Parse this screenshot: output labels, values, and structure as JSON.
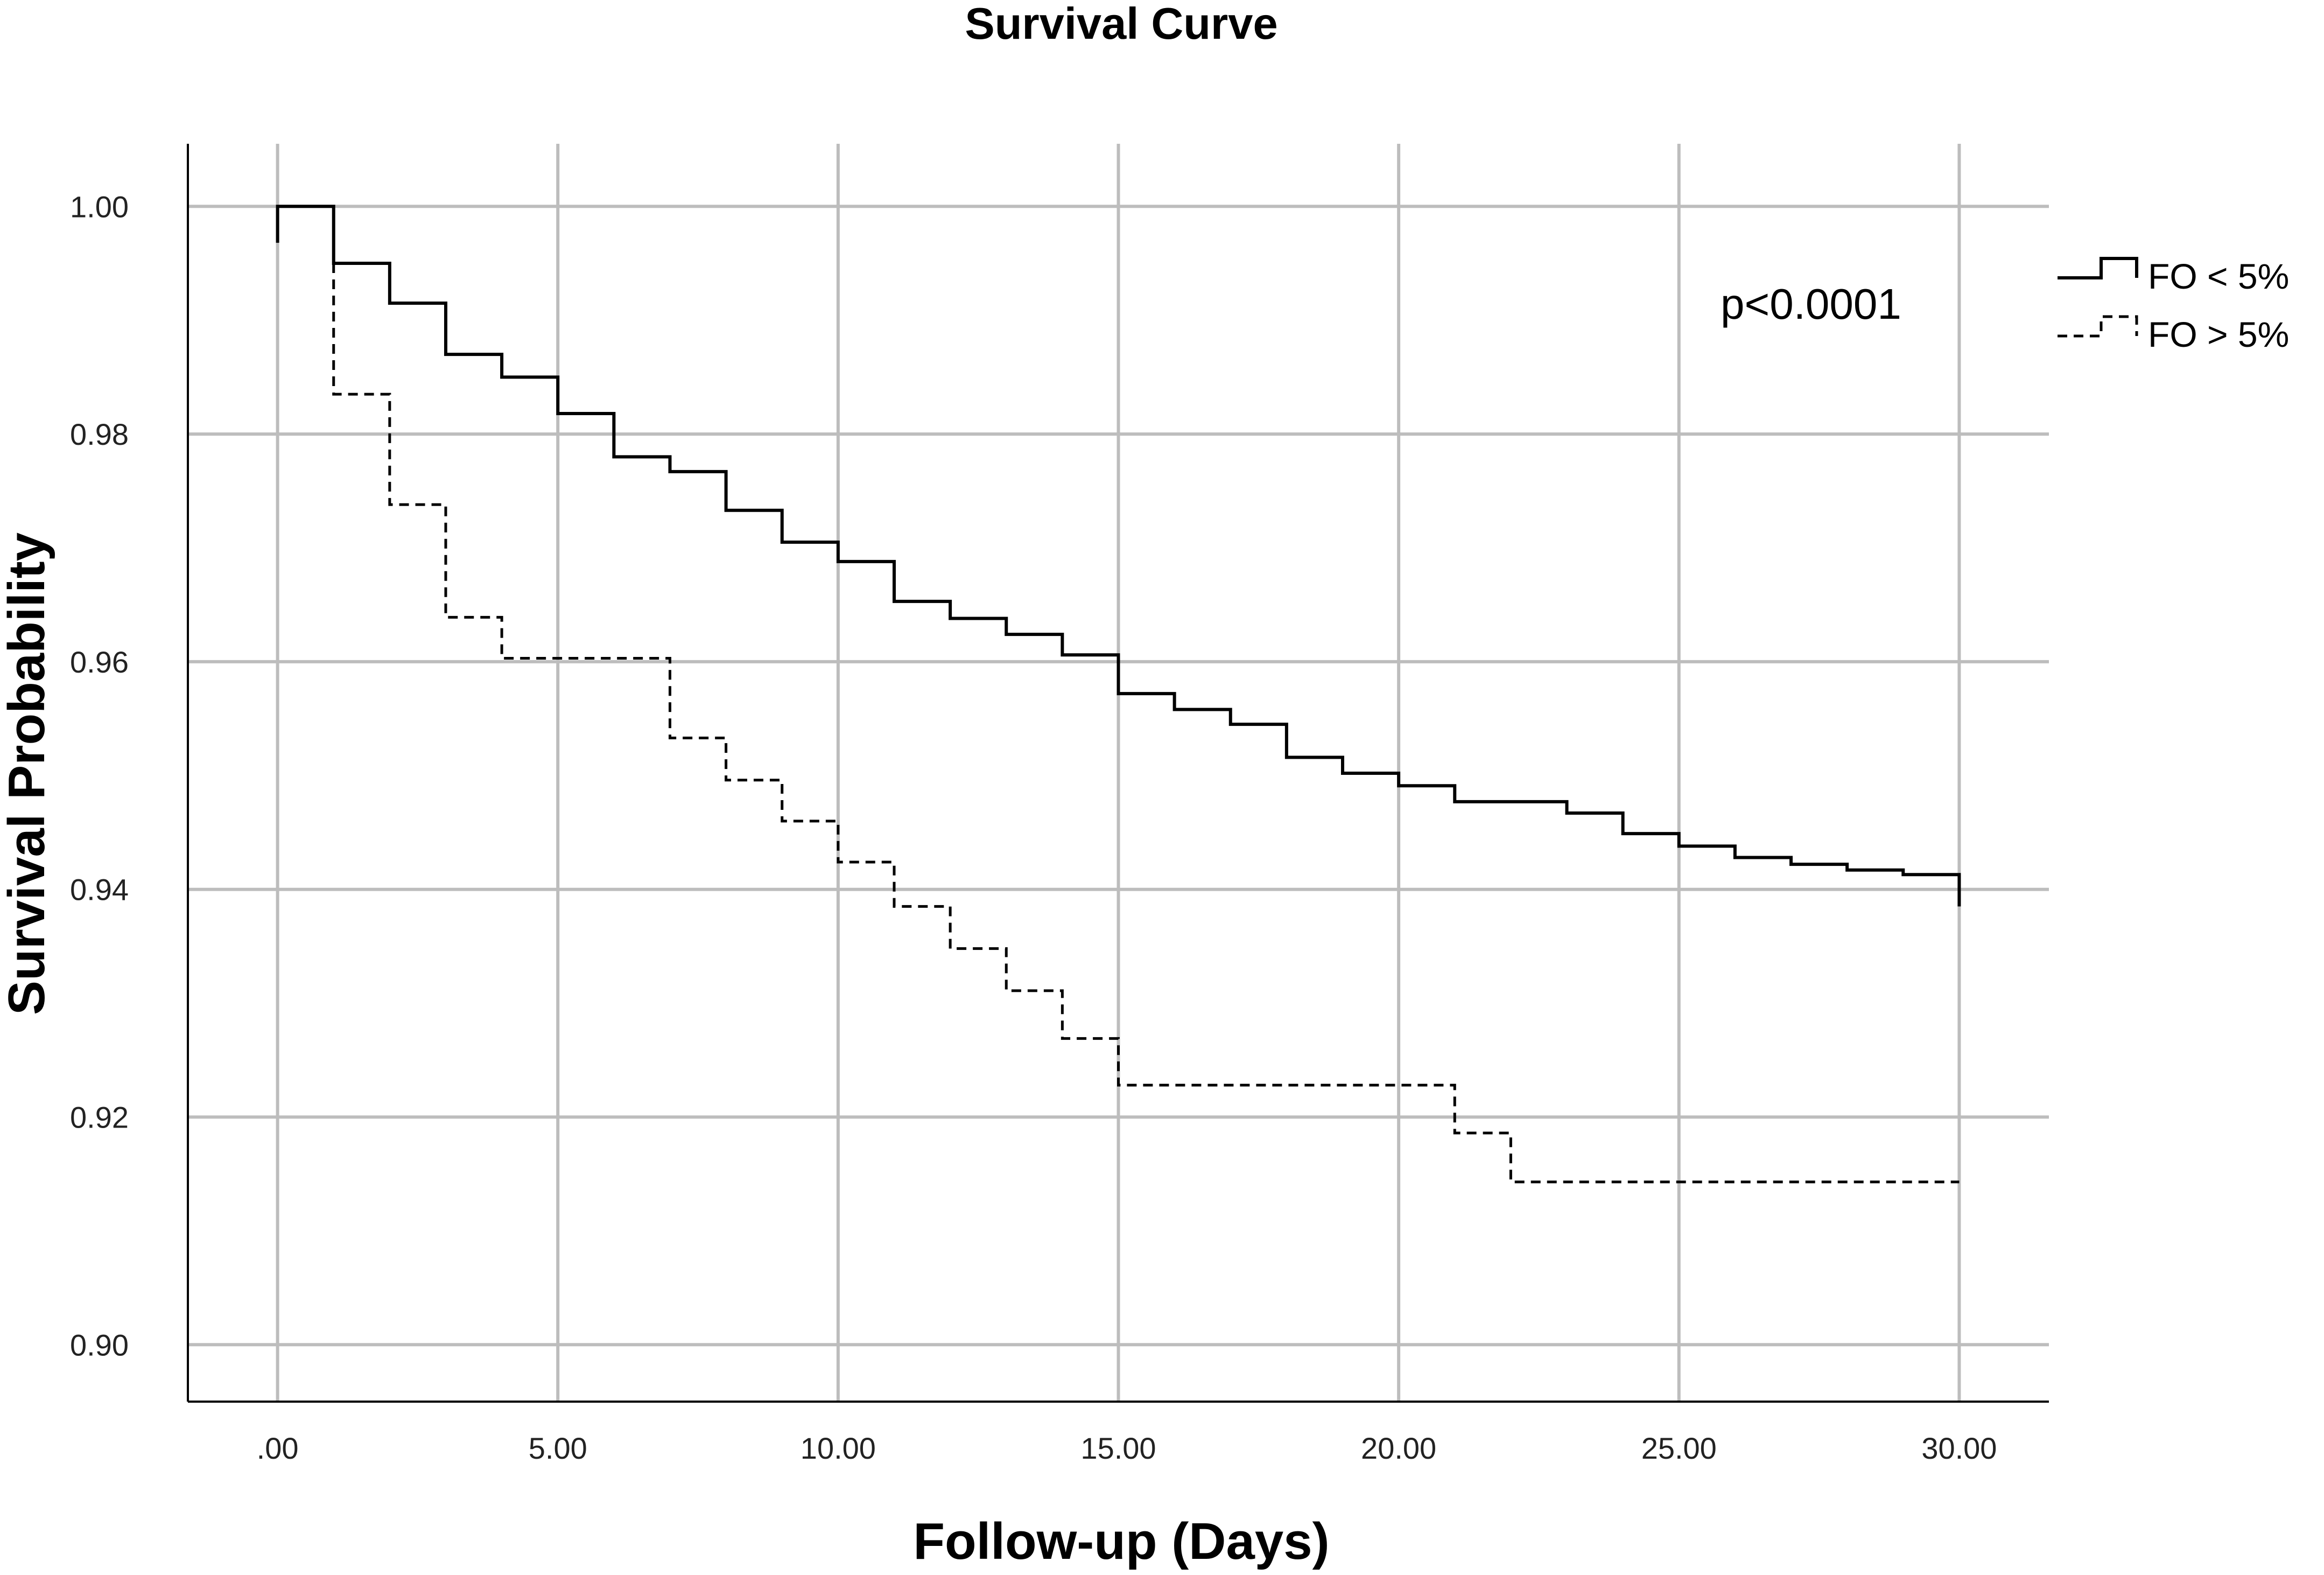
{
  "chart_data": {
    "type": "line",
    "subtype": "kaplan-meier-step",
    "title": "Survival Curve",
    "xlabel": "Follow-up (Days)",
    "ylabel": "Survival Probability",
    "xlim": [
      -1.6,
      31.6
    ],
    "ylim": [
      0.895,
      1.0055
    ],
    "x_ticks": [
      0,
      5,
      10,
      15,
      20,
      25,
      30
    ],
    "x_tick_labels": [
      ".00",
      "5.00",
      "10.00",
      "15.00",
      "20.00",
      "25.00",
      "30.00"
    ],
    "y_ticks": [
      0.9,
      0.92,
      0.94,
      0.96,
      0.98,
      1.0
    ],
    "y_tick_labels": [
      "0.90",
      "0.92",
      "0.94",
      "0.96",
      "0.98",
      "1.00"
    ],
    "grid": true,
    "legend_position": "right-top",
    "annotation": "p<0.0001",
    "series": [
      {
        "name": "FO < 5%",
        "style": "solid",
        "start_value": 0.9968,
        "x": [
          0,
          1,
          2,
          3,
          4,
          5,
          6,
          7,
          8,
          9,
          10,
          11,
          12,
          13,
          14,
          15,
          16,
          17,
          18,
          19,
          20,
          21,
          22,
          23,
          24,
          25,
          26,
          27,
          28,
          29,
          30
        ],
        "values": [
          1.0,
          0.995,
          0.9915,
          0.987,
          0.985,
          0.9818,
          0.978,
          0.9767,
          0.9733,
          0.9705,
          0.9688,
          0.9653,
          0.9638,
          0.9624,
          0.9606,
          0.9572,
          0.9558,
          0.9545,
          0.9516,
          0.9502,
          0.9491,
          0.9477,
          0.9477,
          0.9467,
          0.9449,
          0.9438,
          0.9428,
          0.9422,
          0.9417,
          0.9413,
          0.9385
        ]
      },
      {
        "name": "FO > 5%",
        "style": "dashed",
        "x": [
          1,
          2,
          3,
          4,
          7,
          8,
          9,
          10,
          11,
          12,
          13,
          14,
          15,
          21,
          22,
          30
        ],
        "values": [
          0.9835,
          0.9738,
          0.9639,
          0.9603,
          0.9533,
          0.9496,
          0.946,
          0.9424,
          0.9385,
          0.9348,
          0.9311,
          0.9269,
          0.9228,
          0.9186,
          0.9143,
          0.9143
        ]
      }
    ]
  }
}
